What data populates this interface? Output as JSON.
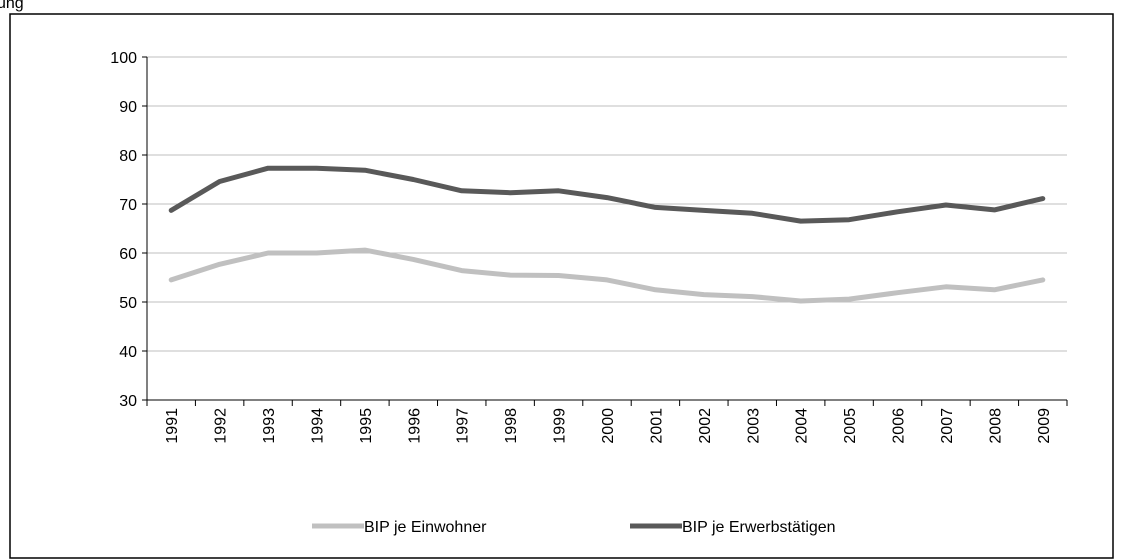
{
  "header_partial_text": "ung",
  "chart_data": {
    "type": "line",
    "x": [
      "1991",
      "1992",
      "1993",
      "1994",
      "1995",
      "1996",
      "1997",
      "1998",
      "1999",
      "2000",
      "2001",
      "2002",
      "2003",
      "2004",
      "2005",
      "2006",
      "2007",
      "2008",
      "2009"
    ],
    "ylim": [
      30,
      100
    ],
    "yticks": [
      30,
      40,
      50,
      60,
      70,
      80,
      90,
      100
    ],
    "grid": true,
    "legend_position": "bottom",
    "series": [
      {
        "name": "BIP je Einwohner",
        "color": "#c0c0c0",
        "values": [
          54.5,
          57.7,
          60.0,
          60.0,
          60.6,
          58.7,
          56.4,
          55.5,
          55.4,
          54.5,
          52.5,
          51.5,
          51.1,
          50.2,
          50.6,
          51.9,
          53.1,
          52.5,
          54.5
        ]
      },
      {
        "name": "BIP je Erwerbstätigen",
        "color": "#595959",
        "values": [
          68.7,
          74.6,
          77.3,
          77.3,
          76.9,
          75.0,
          72.7,
          72.3,
          72.7,
          71.3,
          69.3,
          68.7,
          68.1,
          66.5,
          66.8,
          68.4,
          69.8,
          68.8,
          71.1
        ]
      }
    ]
  }
}
